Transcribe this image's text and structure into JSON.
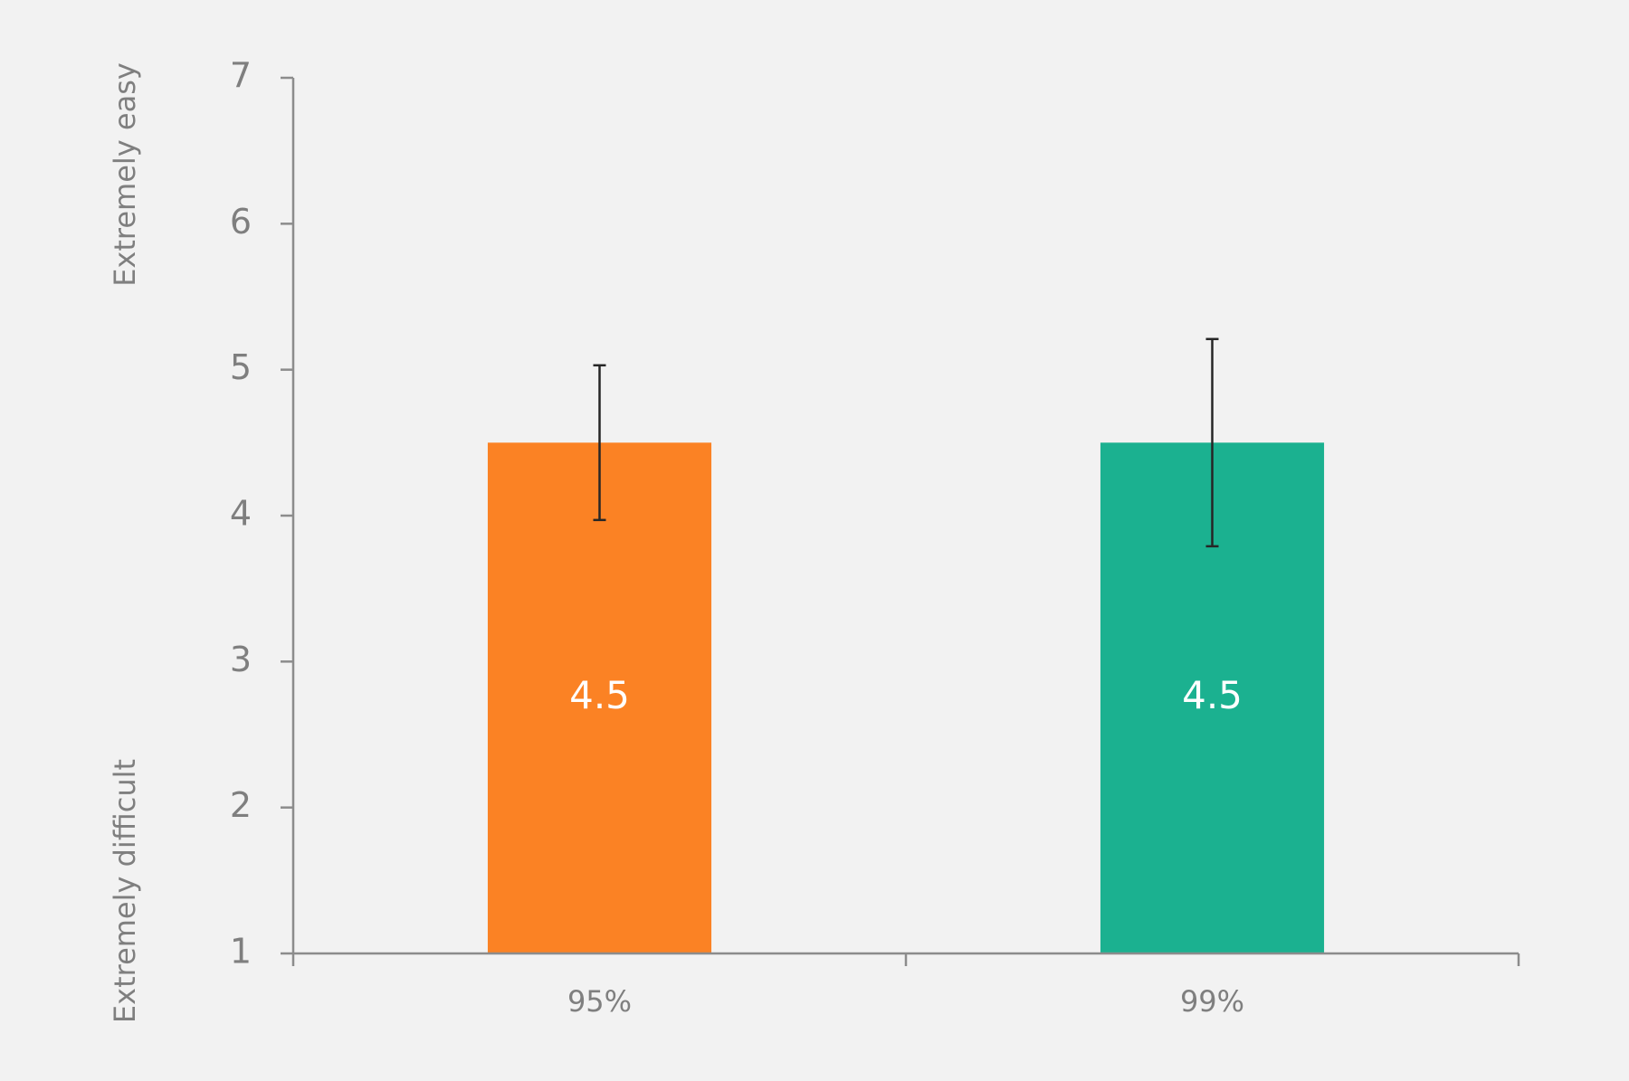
{
  "chart_data": {
    "type": "bar",
    "y_label_top": "Extremely easy",
    "y_label_bottom": "Extremely difficult",
    "categories": [
      "95%",
      "99%"
    ],
    "values": [
      4.5,
      4.5
    ],
    "errors": [
      0.53,
      0.71
    ],
    "colors": [
      "#fb8224",
      "#1bb190"
    ],
    "ylim": [
      1,
      7
    ],
    "yticks": [
      1,
      2,
      3,
      4,
      5,
      6,
      7
    ],
    "grid": false
  }
}
